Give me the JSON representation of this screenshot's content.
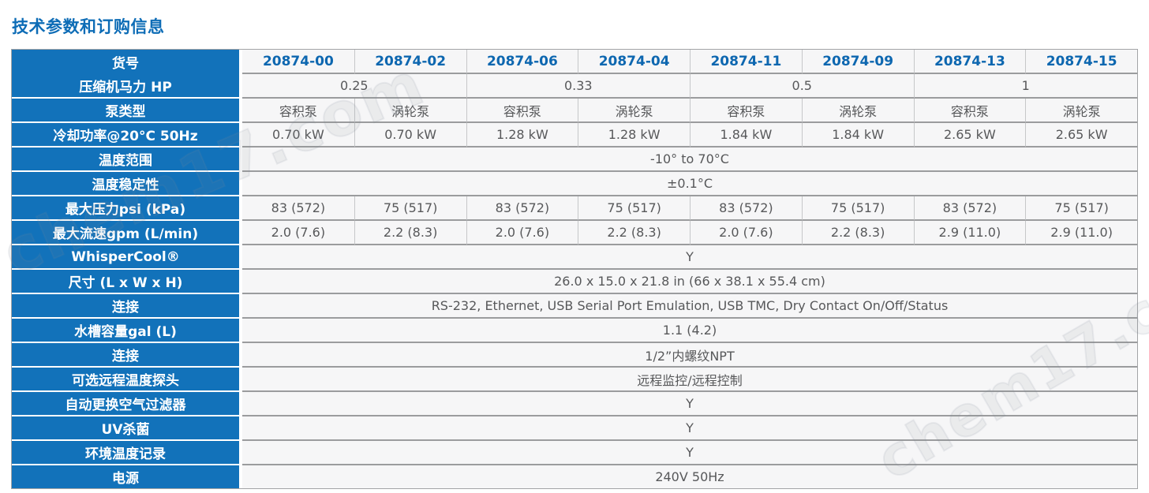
{
  "page": {
    "title": "技术参数和订购信息",
    "watermark": "chem17.com"
  },
  "colors": {
    "label_bg": "#1272ba",
    "header_text": "#0d67b0",
    "title_text": "#0d6cb6",
    "data_text": "#57585a",
    "cell_bg": "#f6f6f7",
    "row_divider": "#9b9c9e",
    "col_divider": "#c6c7c9"
  },
  "table": {
    "corner_label": "货号",
    "columns": [
      "20874-00",
      "20874-02",
      "20874-06",
      "20874-04",
      "20874-11",
      "20874-09",
      "20874-13",
      "20874-15"
    ],
    "rows": [
      {
        "label": "压缩机马力 HP",
        "type": "group4",
        "values": [
          "0.25",
          "0.33",
          "0.5",
          "1"
        ]
      },
      {
        "label": "泵类型",
        "type": "per-column",
        "values": [
          "容积泵",
          "涡轮泵",
          "容积泵",
          "涡轮泵",
          "容积泵",
          "涡轮泵",
          "容积泵",
          "涡轮泵"
        ]
      },
      {
        "label": "冷却功率@20°C 50Hz",
        "type": "per-column",
        "values": [
          "0.70 kW",
          "0.70 kW",
          "1.28 kW",
          "1.28 kW",
          "1.84 kW",
          "1.84 kW",
          "2.65 kW",
          "2.65 kW"
        ]
      },
      {
        "label": "温度范围",
        "type": "full",
        "values": [
          "-10° to 70°C"
        ]
      },
      {
        "label": "温度稳定性",
        "type": "full",
        "values": [
          "±0.1°C"
        ]
      },
      {
        "label": "最大压力psi (kPa)",
        "type": "per-column",
        "values": [
          "83 (572)",
          "75 (517)",
          "83 (572)",
          "75 (517)",
          "83 (572)",
          "75 (517)",
          "83 (572)",
          "75 (517)"
        ]
      },
      {
        "label": "最大流速gpm (L/min)",
        "type": "per-column",
        "values": [
          "2.0 (7.6)",
          "2.2 (8.3)",
          "2.0 (7.6)",
          "2.2 (8.3)",
          "2.0 (7.6)",
          "2.2 (8.3)",
          "2.9 (11.0)",
          "2.9 (11.0)"
        ]
      },
      {
        "label": "WhisperCool®",
        "type": "full",
        "values": [
          "Y"
        ]
      },
      {
        "label": "尺寸 (L x W x H)",
        "type": "full",
        "values": [
          "26.0 x 15.0 x 21.8 in (66 x 38.1 x 55.4 cm)"
        ]
      },
      {
        "label": "连接",
        "type": "full",
        "values": [
          "RS-232, Ethernet, USB Serial Port Emulation, USB TMC, Dry Contact On/Off/Status"
        ]
      },
      {
        "label": "水槽容量gal (L)",
        "type": "full",
        "values": [
          "1.1 (4.2)"
        ]
      },
      {
        "label": "连接",
        "type": "full",
        "values": [
          "1/2”内螺纹NPT"
        ]
      },
      {
        "label": "可选远程温度探头",
        "type": "full",
        "values": [
          "远程监控/远程控制"
        ]
      },
      {
        "label": "自动更换空气过滤器",
        "type": "full",
        "values": [
          "Y"
        ]
      },
      {
        "label": "UV杀菌",
        "type": "full",
        "values": [
          "Y"
        ]
      },
      {
        "label": "环境温度记录",
        "type": "full",
        "values": [
          "Y"
        ]
      },
      {
        "label": "电源",
        "type": "full",
        "values": [
          "240V 50Hz"
        ]
      }
    ]
  }
}
